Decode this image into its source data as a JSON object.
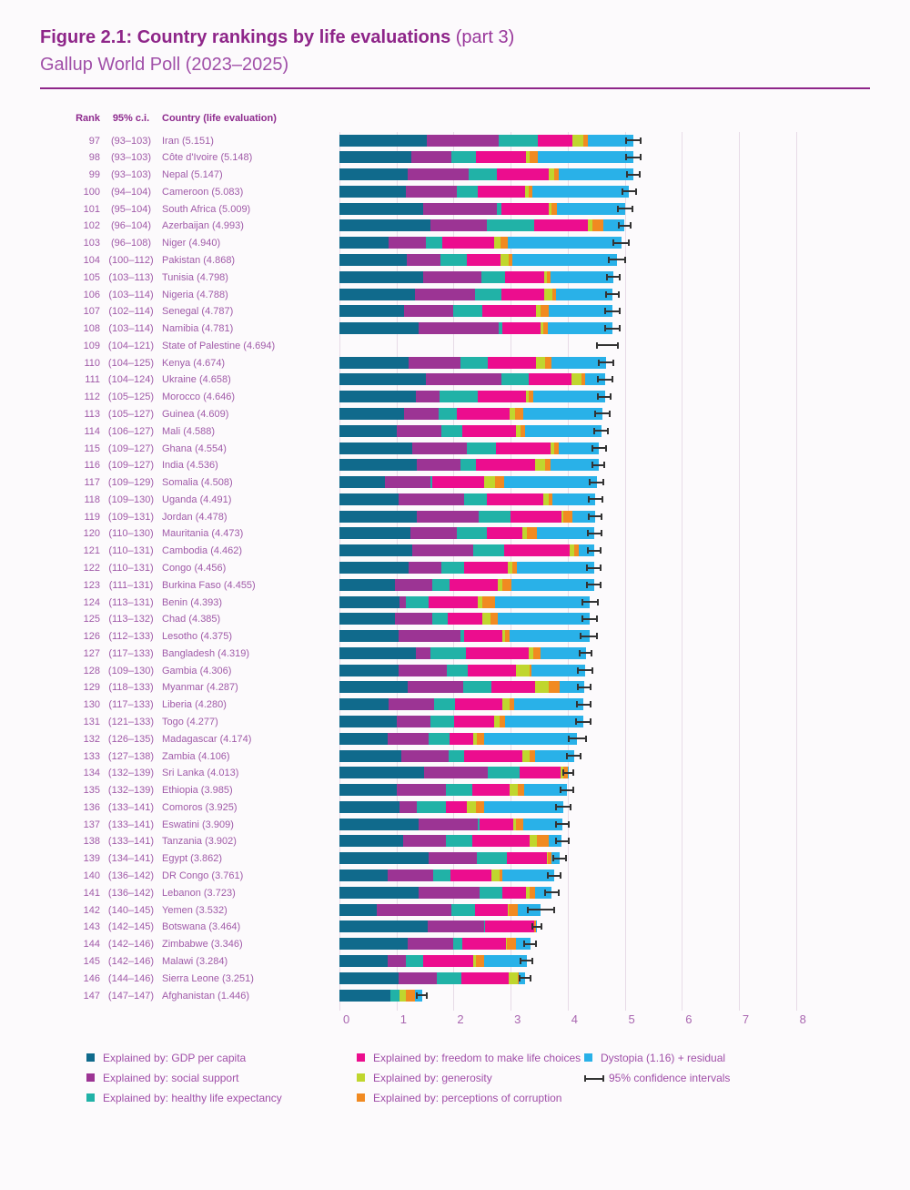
{
  "figure": {
    "title_bold": "Figure 2.1: Country rankings by life evaluations",
    "title_rest": " (part 3)",
    "subtitle": "Gallup World Poll (2023–2025)"
  },
  "table_header": {
    "rank": "Rank",
    "ci": "95% c.i.",
    "country": "Country (life evaluation)"
  },
  "colors": {
    "gdp": "#106a8c",
    "social": "#9c3494",
    "healthy": "#21b2a7",
    "freedom": "#ec0d8e",
    "generosity": "#c0d62e",
    "corruption": "#f18a21",
    "dystopia": "#29b1e8",
    "whisker": "#333333",
    "rule": "#8e2589",
    "gridline": "#e7dbe7"
  },
  "axis": {
    "min": 0,
    "max": 8,
    "ticks": [
      "0",
      "1",
      "2",
      "3",
      "4",
      "5",
      "6",
      "7",
      "8"
    ]
  },
  "legend": {
    "columns": [
      {
        "items": [
          {
            "swatch": "gdp",
            "label": "Explained by: GDP per capita"
          },
          {
            "swatch": "social",
            "label": "Explained by: social support"
          },
          {
            "swatch": "healthy",
            "label": "Explained by: healthy life expectancy"
          }
        ]
      },
      {
        "items": [
          {
            "swatch": "freedom",
            "label": "Explained by: freedom to make life choices"
          },
          {
            "swatch": "generosity",
            "label": "Explained by: generosity"
          },
          {
            "swatch": "corruption",
            "label": "Explained by: perceptions of corruption"
          }
        ]
      },
      {
        "items": [
          {
            "swatch": "dystopia",
            "label": "Dystopia (1.16) + residual"
          },
          {
            "swatch": "whisker-glyph",
            "label": "95% confidence intervals"
          }
        ]
      }
    ]
  },
  "chart_data": {
    "type": "stacked_bar_horizontal",
    "title": "Country rankings by life evaluations (part 3), Gallup World Poll (2023–2025)",
    "x_range": [
      0,
      8
    ],
    "segment_keys": [
      "gdp",
      "social",
      "healthy",
      "freedom",
      "generosity",
      "corruption",
      "dystopia"
    ],
    "segment_names": [
      "Explained by: GDP per capita",
      "Explained by: social support",
      "Explained by: healthy life expectancy",
      "Explained by: freedom to make life choices",
      "Explained by: generosity",
      "Explained by: perceptions of corruption",
      "Dystopia (1.16) + residual"
    ],
    "rows": [
      {
        "rank": "97",
        "ci": "(93–103)",
        "country": "Iran (5.151)",
        "total": 5.151,
        "has_bar": true,
        "ci_hw": 0.14,
        "segments": [
          1.53,
          1.26,
          0.69,
          0.6,
          0.2,
          0.08,
          0.79
        ]
      },
      {
        "rank": "98",
        "ci": "(93–103)",
        "country": "Côte d'Ivoire (5.148)",
        "total": 5.148,
        "has_bar": true,
        "ci_hw": 0.14,
        "segments": [
          1.26,
          0.7,
          0.43,
          0.88,
          0.07,
          0.13,
          1.68
        ]
      },
      {
        "rank": "99",
        "ci": "(93–103)",
        "country": "Nepal (5.147)",
        "total": 5.147,
        "has_bar": true,
        "ci_hw": 0.13,
        "segments": [
          1.2,
          1.07,
          0.49,
          0.91,
          0.1,
          0.08,
          1.3
        ]
      },
      {
        "rank": "100",
        "ci": "(94–104)",
        "country": "Cameroon (5.083)",
        "total": 5.083,
        "has_bar": true,
        "ci_hw": 0.14,
        "segments": [
          1.16,
          0.9,
          0.36,
          0.83,
          0.07,
          0.07,
          1.69
        ]
      },
      {
        "rank": "101",
        "ci": "(95–104)",
        "country": "South Africa (5.009)",
        "total": 5.009,
        "has_bar": true,
        "ci_hw": 0.15,
        "segments": [
          1.46,
          1.3,
          0.08,
          0.83,
          0.05,
          0.1,
          1.19
        ]
      },
      {
        "rank": "102",
        "ci": "(96–104)",
        "country": "Azerbaijan (4.993)",
        "total": 4.993,
        "has_bar": true,
        "ci_hw": 0.12,
        "segments": [
          1.6,
          0.98,
          0.84,
          0.93,
          0.08,
          0.2,
          0.36
        ]
      },
      {
        "rank": "103",
        "ci": "(96–108)",
        "country": "Niger (4.940)",
        "total": 4.94,
        "has_bar": true,
        "ci_hw": 0.15,
        "segments": [
          0.86,
          0.66,
          0.28,
          0.91,
          0.12,
          0.12,
          1.99
        ]
      },
      {
        "rank": "104",
        "ci": "(100–112)",
        "country": "Pakistan  (4.868)",
        "total": 4.868,
        "has_bar": true,
        "ci_hw": 0.16,
        "segments": [
          1.18,
          0.59,
          0.47,
          0.58,
          0.14,
          0.07,
          1.84
        ]
      },
      {
        "rank": "105",
        "ci": "(103–113)",
        "country": "Tunisia (4.798)",
        "total": 4.798,
        "has_bar": true,
        "ci_hw": 0.13,
        "segments": [
          1.46,
          1.03,
          0.41,
          0.69,
          0.04,
          0.07,
          1.1
        ]
      },
      {
        "rank": "106",
        "ci": "(103–114)",
        "country": "Nigeria (4.788)",
        "total": 4.788,
        "has_bar": true,
        "ci_hw": 0.13,
        "segments": [
          1.32,
          1.06,
          0.46,
          0.75,
          0.15,
          0.05,
          1.0
        ]
      },
      {
        "rank": "107",
        "ci": "(102–114)",
        "country": "Senegal (4.787)",
        "total": 4.787,
        "has_bar": true,
        "ci_hw": 0.14,
        "segments": [
          1.13,
          0.87,
          0.51,
          0.93,
          0.09,
          0.14,
          1.12
        ]
      },
      {
        "rank": "108",
        "ci": "(103–114)",
        "country": "Namibia (4.781)",
        "total": 4.781,
        "has_bar": true,
        "ci_hw": 0.14,
        "segments": [
          1.39,
          1.4,
          0.06,
          0.68,
          0.05,
          0.08,
          1.12
        ]
      },
      {
        "rank": "109",
        "ci": "(104–121)",
        "country": "State of Palestine (4.694)",
        "total": 4.694,
        "has_bar": false,
        "ci_hw": 0.2,
        "segments": [
          0,
          0,
          0,
          0,
          0,
          0,
          0
        ]
      },
      {
        "rank": "110",
        "ci": "(104–125)",
        "country": "Kenya (4.674)",
        "total": 4.674,
        "has_bar": true,
        "ci_hw": 0.14,
        "segments": [
          1.21,
          0.91,
          0.48,
          0.84,
          0.17,
          0.1,
          0.96
        ]
      },
      {
        "rank": "111",
        "ci": "(104–124)",
        "country": "Ukraine (4.658)",
        "total": 4.658,
        "has_bar": true,
        "ci_hw": 0.14,
        "segments": [
          1.51,
          1.33,
          0.47,
          0.76,
          0.18,
          0.05,
          0.36
        ]
      },
      {
        "rank": "112",
        "ci": "(105–125)",
        "country": "Morocco (4.646)",
        "total": 4.646,
        "has_bar": true,
        "ci_hw": 0.13,
        "segments": [
          1.34,
          0.42,
          0.67,
          0.84,
          0.04,
          0.08,
          1.26
        ]
      },
      {
        "rank": "113",
        "ci": "(105–127)",
        "country": "Guinea (4.609)",
        "total": 4.609,
        "has_bar": true,
        "ci_hw": 0.15,
        "segments": [
          1.13,
          0.61,
          0.32,
          0.92,
          0.1,
          0.15,
          1.38
        ]
      },
      {
        "rank": "114",
        "ci": "(106–127)",
        "country": "Mali (4.588)",
        "total": 4.588,
        "has_bar": true,
        "ci_hw": 0.14,
        "segments": [
          1.01,
          0.77,
          0.37,
          0.94,
          0.09,
          0.07,
          1.34
        ]
      },
      {
        "rank": "115",
        "ci": "(109–127)",
        "country": "Ghana (4.554)",
        "total": 4.554,
        "has_bar": true,
        "ci_hw": 0.14,
        "segments": [
          1.27,
          0.97,
          0.51,
          0.95,
          0.07,
          0.08,
          0.7
        ]
      },
      {
        "rank": "116",
        "ci": "(109–127)",
        "country": "India (4.536)",
        "total": 4.536,
        "has_bar": true,
        "ci_hw": 0.12,
        "segments": [
          1.36,
          0.76,
          0.27,
          1.04,
          0.18,
          0.09,
          0.84
        ]
      },
      {
        "rank": "117",
        "ci": "(109–129)",
        "country": "Somalia (4.508)",
        "total": 4.508,
        "has_bar": true,
        "ci_hw": 0.14,
        "segments": [
          0.79,
          0.81,
          0.03,
          0.91,
          0.18,
          0.17,
          1.62
        ]
      },
      {
        "rank": "118",
        "ci": "(109–130)",
        "country": "Uganda (4.491)",
        "total": 4.491,
        "has_bar": true,
        "ci_hw": 0.14,
        "segments": [
          1.03,
          1.16,
          0.4,
          0.99,
          0.09,
          0.07,
          0.75
        ]
      },
      {
        "rank": "119",
        "ci": "(109–131)",
        "country": "Jordan (4.478)",
        "total": 4.478,
        "has_bar": true,
        "ci_hw": 0.13,
        "segments": [
          1.36,
          1.08,
          0.56,
          0.89,
          0.03,
          0.16,
          0.4
        ]
      },
      {
        "rank": "120",
        "ci": "(110–130)",
        "country": "Mauritania (4.473)",
        "total": 4.473,
        "has_bar": true,
        "ci_hw": 0.13,
        "segments": [
          1.24,
          0.81,
          0.54,
          0.61,
          0.09,
          0.17,
          1.01
        ]
      },
      {
        "rank": "121",
        "ci": "(110–131)",
        "country": "Cambodia (4.462)",
        "total": 4.462,
        "has_bar": true,
        "ci_hw": 0.13,
        "segments": [
          1.28,
          1.06,
          0.55,
          1.14,
          0.09,
          0.08,
          0.26
        ]
      },
      {
        "rank": "122",
        "ci": "(110–131)",
        "country": "Congo (4.456)",
        "total": 4.456,
        "has_bar": true,
        "ci_hw": 0.14,
        "segments": [
          1.21,
          0.57,
          0.4,
          0.77,
          0.08,
          0.08,
          1.35
        ]
      },
      {
        "rank": "123",
        "ci": "(111–131)",
        "country": "Burkina Faso (4.455)",
        "total": 4.455,
        "has_bar": true,
        "ci_hw": 0.14,
        "segments": [
          0.97,
          0.66,
          0.3,
          0.84,
          0.08,
          0.17,
          1.44
        ]
      },
      {
        "rank": "124",
        "ci": "(113–131)",
        "country": "Benin (4.393)",
        "total": 4.393,
        "has_bar": true,
        "ci_hw": 0.15,
        "segments": [
          1.06,
          0.1,
          0.41,
          0.85,
          0.08,
          0.23,
          1.66
        ]
      },
      {
        "rank": "125",
        "ci": "(113–132)",
        "country": "Chad (4.385)",
        "total": 4.385,
        "has_bar": true,
        "ci_hw": 0.15,
        "segments": [
          0.97,
          0.65,
          0.28,
          0.6,
          0.15,
          0.13,
          1.61
        ]
      },
      {
        "rank": "126",
        "ci": "(112–133)",
        "country": "Lesotho (4.375)",
        "total": 4.375,
        "has_bar": true,
        "ci_hw": 0.16,
        "segments": [
          1.04,
          1.08,
          0.06,
          0.68,
          0.05,
          0.08,
          1.39
        ]
      },
      {
        "rank": "127",
        "ci": "(117–133)",
        "country": "Bangladesh (4.319)",
        "total": 4.319,
        "has_bar": true,
        "ci_hw": 0.12,
        "segments": [
          1.34,
          0.25,
          0.63,
          1.09,
          0.09,
          0.13,
          0.79
        ]
      },
      {
        "rank": "128",
        "ci": "(109–130)",
        "country": "Gambia (4.306)",
        "total": 4.306,
        "has_bar": true,
        "ci_hw": 0.15,
        "segments": [
          1.03,
          0.85,
          0.37,
          0.85,
          0.23,
          0.03,
          0.95
        ]
      },
      {
        "rank": "129",
        "ci": "(118–133)",
        "country": "Myanmar (4.287)",
        "total": 4.287,
        "has_bar": true,
        "ci_hw": 0.13,
        "segments": [
          1.19,
          0.98,
          0.5,
          0.76,
          0.24,
          0.19,
          0.43
        ]
      },
      {
        "rank": "130",
        "ci": "(117–133)",
        "country": "Liberia (4.280)",
        "total": 4.28,
        "has_bar": true,
        "ci_hw": 0.14,
        "segments": [
          0.86,
          0.8,
          0.36,
          0.83,
          0.13,
          0.08,
          1.22
        ]
      },
      {
        "rank": "131",
        "ci": "(121–133)",
        "country": "Togo (4.277)",
        "total": 4.277,
        "has_bar": true,
        "ci_hw": 0.14,
        "segments": [
          1.01,
          0.59,
          0.41,
          0.7,
          0.09,
          0.11,
          1.37
        ]
      },
      {
        "rank": "132",
        "ci": "(126–135)",
        "country": "Madagascar (4.174)",
        "total": 4.174,
        "has_bar": true,
        "ci_hw": 0.17,
        "segments": [
          0.84,
          0.72,
          0.37,
          0.41,
          0.07,
          0.13,
          1.63
        ]
      },
      {
        "rank": "133",
        "ci": "(127–138)",
        "country": "Zambia (4.106)",
        "total": 4.106,
        "has_bar": true,
        "ci_hw": 0.14,
        "segments": [
          1.09,
          0.82,
          0.28,
          1.01,
          0.13,
          0.1,
          0.68
        ]
      },
      {
        "rank": "134",
        "ci": "(132–139)",
        "country": "Sri Lanka (4.013)",
        "total": 4.013,
        "has_bar": true,
        "ci_hw": 0.1,
        "segments": [
          1.48,
          1.12,
          0.56,
          0.72,
          0.04,
          0.08,
          0.01
        ]
      },
      {
        "rank": "135",
        "ci": "(132–139)",
        "country": "Ethiopia (3.985)",
        "total": 3.985,
        "has_bar": true,
        "ci_hw": 0.13,
        "segments": [
          1.01,
          0.85,
          0.47,
          0.66,
          0.14,
          0.11,
          0.75
        ]
      },
      {
        "rank": "136",
        "ci": "(133–141)",
        "country": "Comoros (3.925)",
        "total": 3.925,
        "has_bar": true,
        "ci_hw": 0.14,
        "segments": [
          1.06,
          0.3,
          0.5,
          0.38,
          0.15,
          0.14,
          1.4
        ]
      },
      {
        "rank": "137",
        "ci": "(133–141)",
        "country": "Eswatini (3.909)",
        "total": 3.909,
        "has_bar": true,
        "ci_hw": 0.13,
        "segments": [
          1.38,
          1.04,
          0.04,
          0.59,
          0.04,
          0.14,
          0.68
        ]
      },
      {
        "rank": "138",
        "ci": "(133–141)",
        "country": "Tanzania (3.902)",
        "total": 3.902,
        "has_bar": true,
        "ci_hw": 0.13,
        "segments": [
          1.11,
          0.75,
          0.47,
          1.01,
          0.12,
          0.21,
          0.23
        ]
      },
      {
        "rank": "139",
        "ci": "(134–141)",
        "country": "Egypt (3.862)",
        "total": 3.862,
        "has_bar": true,
        "ci_hw": 0.13,
        "segments": [
          1.56,
          0.85,
          0.52,
          0.7,
          0.03,
          0.06,
          0.14
        ]
      },
      {
        "rank": "140",
        "ci": "(136–142)",
        "country": "DR Congo (3.761)",
        "total": 3.761,
        "has_bar": true,
        "ci_hw": 0.13,
        "segments": [
          0.84,
          0.8,
          0.3,
          0.73,
          0.14,
          0.05,
          0.9
        ]
      },
      {
        "rank": "141",
        "ci": "(136–142)",
        "country": "Lebanon (3.723)",
        "total": 3.723,
        "has_bar": true,
        "ci_hw": 0.14,
        "segments": [
          1.39,
          1.07,
          0.39,
          0.42,
          0.07,
          0.09,
          0.29
        ]
      },
      {
        "rank": "142",
        "ci": "(140–145)",
        "country": "Yemen (3.532)",
        "total": 3.532,
        "has_bar": true,
        "ci_hw": 0.24,
        "segments": [
          0.66,
          1.3,
          0.41,
          0.58,
          0.02,
          0.15,
          0.41
        ]
      },
      {
        "rank": "143",
        "ci": "(142–145)",
        "country": "Botswana (3.464)",
        "total": 3.464,
        "has_bar": true,
        "ci_hw": 0.1,
        "segments": [
          1.55,
          0.98,
          0.03,
          0.85,
          0.01,
          0.02,
          0.02
        ]
      },
      {
        "rank": "144",
        "ci": "(142–146)",
        "country": "Zimbabwe (3.346)",
        "total": 3.346,
        "has_bar": true,
        "ci_hw": 0.12,
        "segments": [
          1.2,
          0.79,
          0.17,
          0.76,
          0.01,
          0.17,
          0.25
        ]
      },
      {
        "rank": "145",
        "ci": "(142–146)",
        "country": "Malawi (3.284)",
        "total": 3.284,
        "has_bar": true,
        "ci_hw": 0.12,
        "segments": [
          0.85,
          0.31,
          0.31,
          0.87,
          0.06,
          0.13,
          0.75
        ]
      },
      {
        "rank": "146",
        "ci": "(144–146)",
        "country": "Sierra Leone (3.251)",
        "total": 3.251,
        "has_bar": true,
        "ci_hw": 0.11,
        "segments": [
          1.04,
          0.67,
          0.43,
          0.83,
          0.16,
          0.02,
          0.1
        ]
      },
      {
        "rank": "147",
        "ci": "(147–147)",
        "country": "Afghanistan (1.446)",
        "total": 1.446,
        "has_bar": true,
        "ci_hw": 0.1,
        "segments": [
          0.89,
          0.0,
          0.16,
          0.0,
          0.11,
          0.16,
          0.13
        ]
      }
    ]
  }
}
